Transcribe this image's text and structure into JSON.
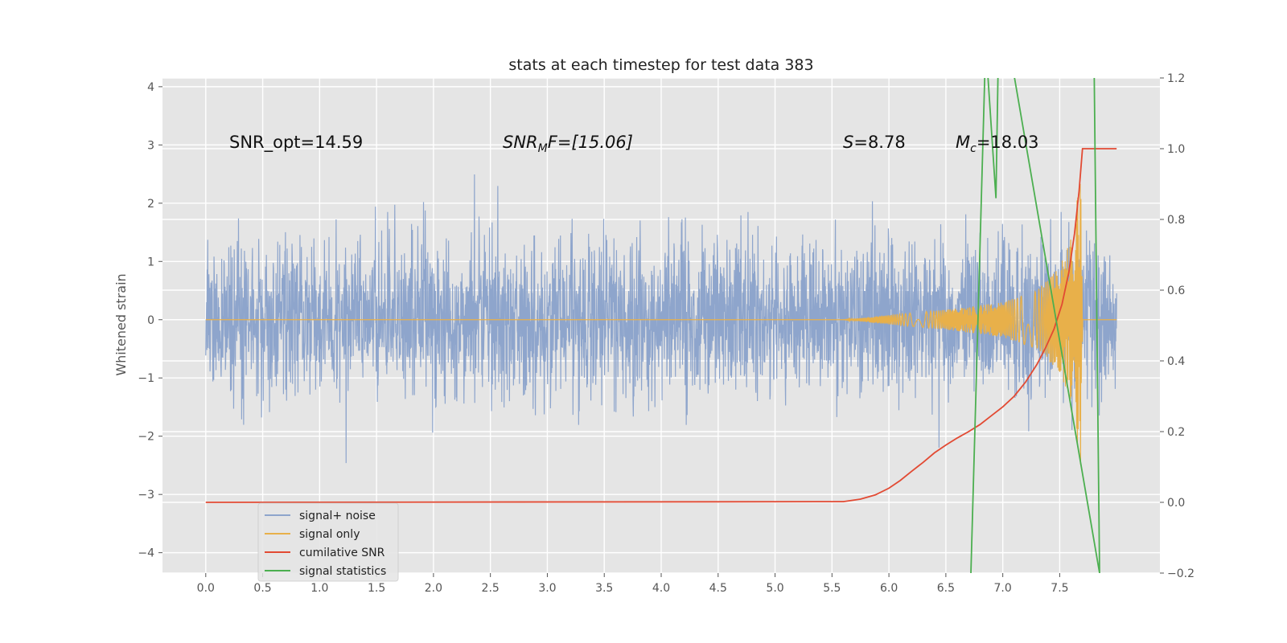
{
  "chart_data": {
    "type": "line",
    "title": "stats at each timestep for test data 383",
    "ylabel": "Whitened strain",
    "xlim": [
      -0.38,
      8.38
    ],
    "ylim": [
      -4.35,
      4.15
    ],
    "y2lim": [
      -0.2,
      1.2
    ],
    "x_ticks": [
      "0.0",
      "0.5",
      "1.0",
      "1.5",
      "2.0",
      "2.5",
      "3.0",
      "3.5",
      "4.0",
      "4.5",
      "5.0",
      "5.5",
      "6.0",
      "6.5",
      "7.0",
      "7.5"
    ],
    "y_ticks": [
      "4",
      "3",
      "2",
      "1",
      "0",
      "−1",
      "−2",
      "−3",
      "−4"
    ],
    "y2_ticks": [
      "1.2",
      "1.0",
      "0.8",
      "0.6",
      "0.4",
      "0.2",
      "0.0",
      "−0.2"
    ],
    "grid": true,
    "legend_position": "lower-left",
    "annotations": {
      "snr_opt": "SNR_opt=14.59",
      "snr_mf_main": "SNR",
      "snr_mf_sub": "M",
      "snr_mf_rest": "F=[15.06]",
      "s_italic": "S",
      "s_rest": "=8.78",
      "mc_main": "M",
      "mc_sub": "c",
      "mc_rest": "=18.03"
    },
    "series": [
      {
        "name": "signal+ noise",
        "color": "#8ea5cc",
        "axis": "left",
        "x_range": [
          0.0,
          8.0
        ],
        "noise_amplitude_approx": 3.0
      },
      {
        "name": "signal only",
        "color": "#e8b04a",
        "axis": "left",
        "x_range": [
          0.0,
          8.0
        ],
        "envelope": [
          [
            5.6,
            0.0
          ],
          [
            6.0,
            0.08
          ],
          [
            6.5,
            0.17
          ],
          [
            7.0,
            0.3
          ],
          [
            7.3,
            0.5
          ],
          [
            7.5,
            0.9
          ],
          [
            7.6,
            1.4
          ],
          [
            7.66,
            2.2
          ],
          [
            7.69,
            2.6
          ],
          [
            7.7,
            0.0
          ],
          [
            8.0,
            0.0
          ]
        ]
      },
      {
        "name": "cumilative SNR",
        "color": "#e24a33",
        "axis": "right",
        "x": [
          0.0,
          5.6,
          5.75,
          5.88,
          6.0,
          6.1,
          6.2,
          6.3,
          6.4,
          6.5,
          6.6,
          6.7,
          6.8,
          6.9,
          7.0,
          7.1,
          7.2,
          7.3,
          7.38,
          7.45,
          7.52,
          7.58,
          7.63,
          7.67,
          7.7,
          8.0
        ],
        "y": [
          0.0,
          0.002,
          0.009,
          0.021,
          0.04,
          0.062,
          0.088,
          0.113,
          0.14,
          0.162,
          0.182,
          0.2,
          0.22,
          0.245,
          0.27,
          0.3,
          0.34,
          0.39,
          0.44,
          0.49,
          0.56,
          0.65,
          0.76,
          0.88,
          1.0,
          1.0
        ]
      },
      {
        "name": "signal statistics",
        "color": "#4caf50",
        "axis": "right",
        "x": [
          6.72,
          6.85,
          6.94,
          6.96,
          7.05,
          7.85,
          7.8
        ],
        "y": [
          -0.2,
          1.3,
          0.86,
          1.25,
          1.3,
          -0.2,
          1.3
        ]
      }
    ]
  }
}
